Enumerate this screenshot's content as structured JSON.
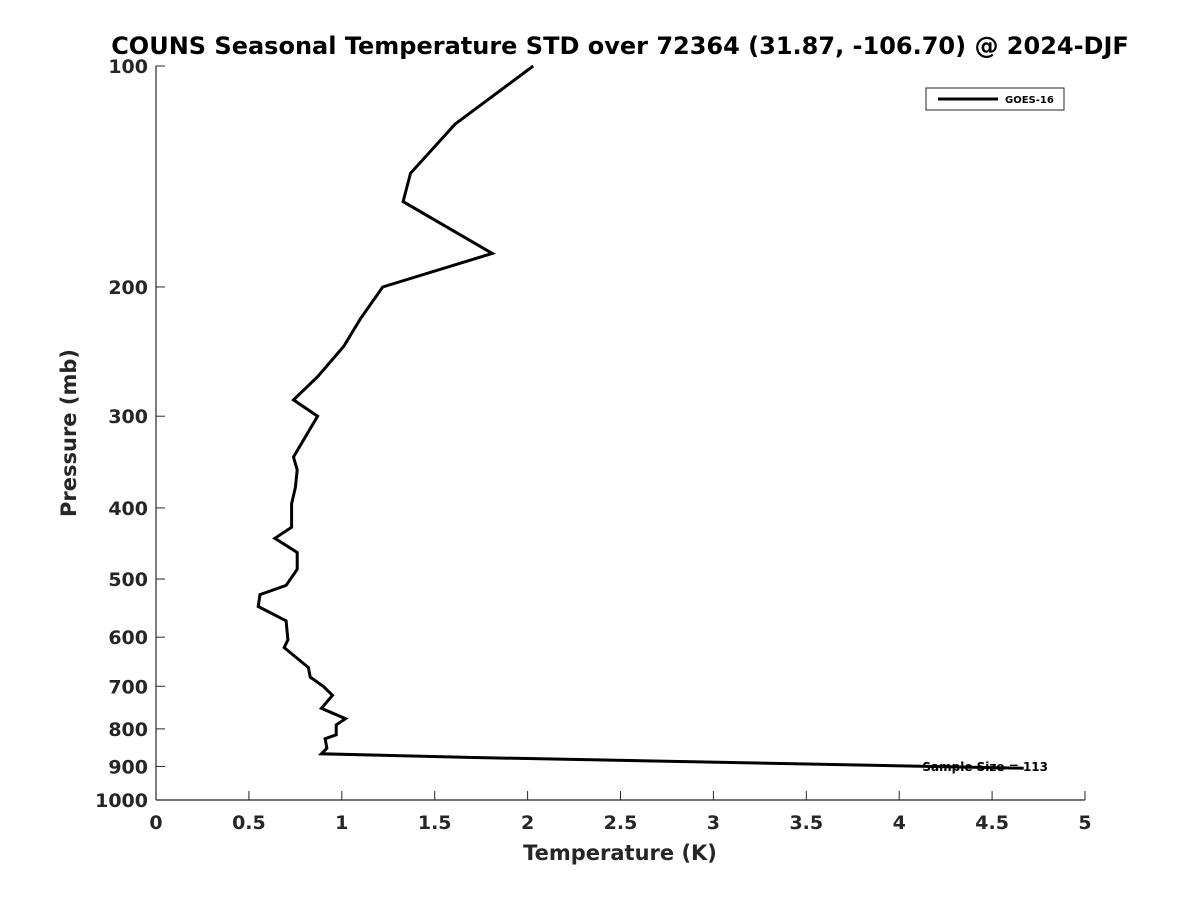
{
  "colors": {
    "line": "#000000",
    "axis": "#262626",
    "background": "#ffffff"
  },
  "chart_data": {
    "type": "line",
    "title": "COUNS Seasonal Temperature STD over 72364 (31.87, -106.70) @ 2024-DJF",
    "xlabel": "Temperature (K)",
    "ylabel": "Pressure (mb)",
    "xlim": [
      0,
      5
    ],
    "ylim": [
      1000,
      100
    ],
    "y_scale": "log",
    "y_reversed": true,
    "grid": false,
    "legend_position": "top-right",
    "x_ticks": [
      "0",
      "0.5",
      "1",
      "1.5",
      "2",
      "2.5",
      "3",
      "3.5",
      "4",
      "4.5",
      "5"
    ],
    "y_ticks": [
      "100",
      "200",
      "300",
      "400",
      "500",
      "600",
      "700",
      "800",
      "900",
      "1000"
    ],
    "annotation": "Sample Size = 113",
    "series": [
      {
        "name": "GOES-16",
        "x": [
          2.03,
          1.61,
          1.37,
          1.33,
          1.81,
          1.22,
          1.1,
          1.01,
          0.87,
          0.74,
          0.87,
          0.74,
          0.76,
          0.75,
          0.73,
          0.73,
          0.64,
          0.76,
          0.76,
          0.7,
          0.56,
          0.55,
          0.7,
          0.71,
          0.69,
          0.82,
          0.83,
          0.9,
          0.95,
          0.89,
          1.02,
          0.97,
          0.97,
          0.91,
          0.92,
          0.89,
          1.68,
          4.67
        ],
        "y": [
          100,
          120,
          140,
          153,
          180,
          200,
          221,
          241,
          265,
          285,
          300,
          341,
          355,
          375,
          395,
          425,
          440,
          460,
          485,
          510,
          525,
          545,
          570,
          605,
          620,
          660,
          680,
          700,
          720,
          750,
          775,
          790,
          815,
          825,
          850,
          865,
          875,
          905
        ]
      }
    ]
  }
}
